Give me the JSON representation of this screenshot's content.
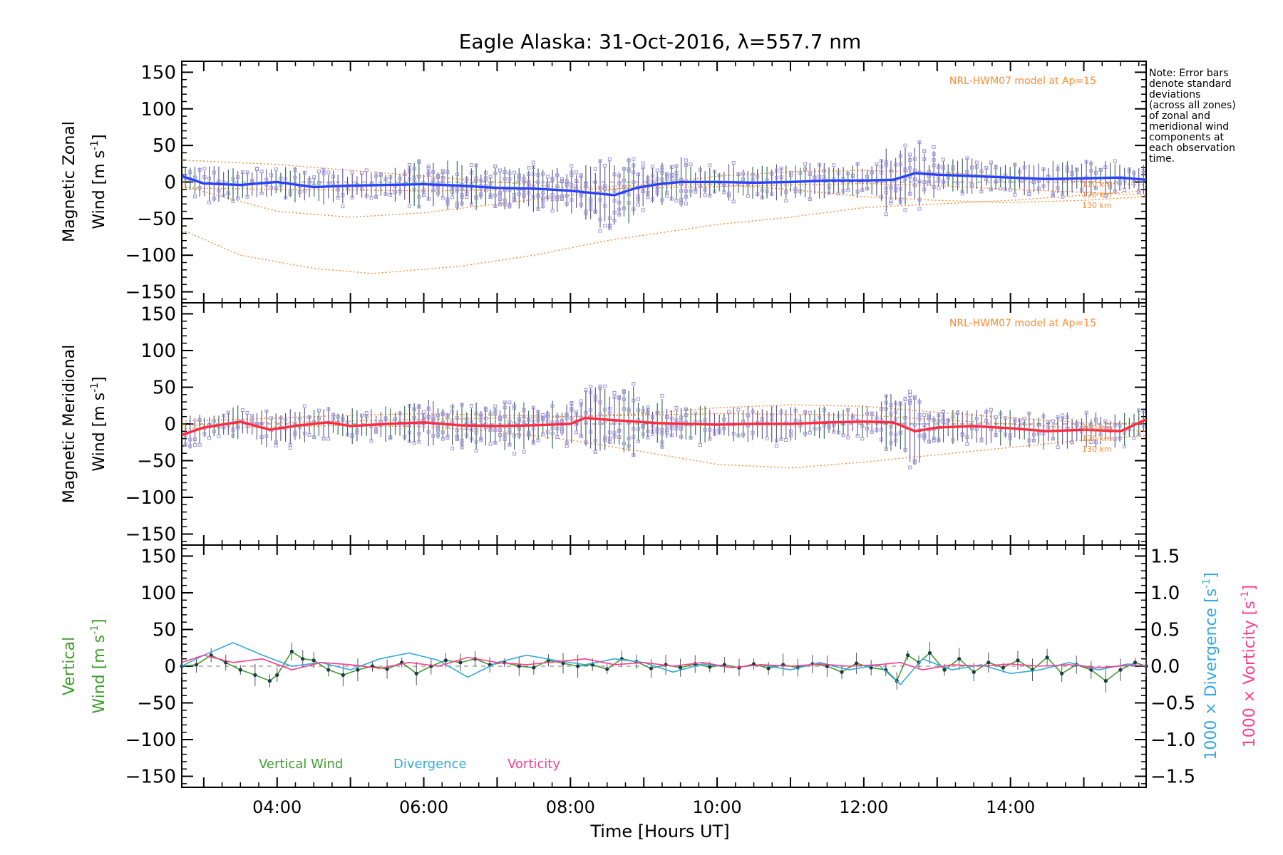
{
  "title": "Eagle Alaska: 31-Oct-2016, λ=557.7 nm",
  "note_lines": [
    "Note: Error bars",
    "denote standard",
    "deviations",
    "(across all zones)",
    "of zonal and",
    "meridional wind",
    "components at",
    "each observation",
    "time."
  ],
  "xlabel": "Time [Hours UT]",
  "x_ticks": [
    "04:00",
    "06:00",
    "08:00",
    "10:00",
    "12:00",
    "14:00"
  ],
  "colors": {
    "zonal": "#2c3fff",
    "zonal_light": "#5ab7ea",
    "meridional": "#ff2a3a",
    "meridional_light": "#ff6fa6",
    "model": "#ff8a33",
    "samples": "#9d93d9",
    "vertical": "#3f9d2f",
    "divergence": "#33a9dc",
    "vorticity": "#ff3c8c"
  },
  "chart_data": [
    {
      "type": "line",
      "panel": "zonal",
      "ylabel_line1": "Magnetic Zonal",
      "ylabel_line2": "Wind [m s",
      "ylabel_sup": "-1",
      "ylabel_end": "]",
      "xlim": [
        2.7,
        15.85
      ],
      "ylim": [
        -165,
        165
      ],
      "y_ticks": [
        "150",
        "100",
        "50",
        "0",
        "−50",
        "−100",
        "−150"
      ],
      "model_label": "NRL-HWM07 model at Ap=15",
      "altitude_labels": [
        "110 km",
        "120 km",
        "130 km"
      ],
      "series": [
        {
          "x": [
            2.7,
            3.0,
            3.5,
            4.0,
            4.5,
            5.0,
            5.5,
            6.0,
            6.5,
            7.0,
            7.5,
            8.0,
            8.3,
            8.6,
            8.9,
            9.2,
            9.5,
            10.0,
            10.5,
            11.0,
            11.5,
            12.0,
            12.4,
            12.7,
            13.0,
            13.5,
            14.0,
            14.5,
            15.0,
            15.5,
            15.85
          ],
          "y": [
            8,
            -2,
            -4,
            0,
            -7,
            -5,
            -4,
            -3,
            -5,
            -8,
            -9,
            -12,
            -15,
            -18,
            -8,
            -3,
            0,
            0,
            -1,
            0,
            2,
            2,
            3,
            12,
            10,
            8,
            6,
            4,
            5,
            6,
            3
          ]
        }
      ],
      "model_curves": [
        {
          "x": [
            2.7,
            4,
            5,
            6,
            7,
            8,
            9,
            10,
            11,
            12,
            13,
            14,
            15,
            15.85
          ],
          "y": [
            30,
            24,
            16,
            8,
            0,
            -8,
            -4,
            8,
            14,
            16,
            13,
            8,
            0,
            -4
          ]
        },
        {
          "x": [
            2.7,
            4,
            5,
            6,
            7,
            8,
            9,
            10,
            11,
            12,
            13,
            14,
            15,
            15.85
          ],
          "y": [
            -5,
            -40,
            -48,
            -42,
            -30,
            -18,
            -5,
            -3,
            -10,
            -20,
            -25,
            -28,
            -25,
            -20
          ]
        },
        {
          "x": [
            2.7,
            3.5,
            4.5,
            5.3,
            6.5,
            7.5,
            8.5,
            10,
            11,
            12,
            13,
            14,
            15,
            15.85
          ],
          "y": [
            -65,
            -100,
            -118,
            -125,
            -115,
            -100,
            -80,
            -58,
            -48,
            -35,
            -30,
            -25,
            -18,
            -12
          ]
        },
        {
          "x": [
            2.7,
            4,
            6,
            8,
            10,
            12,
            13,
            14,
            15,
            15.85
          ],
          "y": [
            -8,
            -10,
            -12,
            -10,
            -6,
            -2,
            -5,
            -10,
            -14,
            -18
          ]
        }
      ]
    },
    {
      "type": "line",
      "panel": "meridional",
      "ylabel_line1": "Magnetic Meridional",
      "ylabel_line2": "Wind [m s",
      "ylabel_sup": "-1",
      "ylabel_end": "]",
      "xlim": [
        2.7,
        15.85
      ],
      "ylim": [
        -165,
        165
      ],
      "y_ticks": [
        "150",
        "100",
        "50",
        "0",
        "−50",
        "−100",
        "−150"
      ],
      "model_label": "NRL-HWM07 model at Ap=15",
      "altitude_labels": [
        "110 km",
        "120 km",
        "130 km"
      ],
      "series": [
        {
          "x": [
            2.7,
            3.0,
            3.5,
            3.9,
            4.3,
            4.7,
            5.0,
            5.5,
            6.0,
            6.5,
            7.0,
            7.5,
            8.0,
            8.2,
            8.6,
            8.9,
            9.2,
            9.6,
            10.0,
            10.5,
            11.0,
            11.5,
            12.0,
            12.4,
            12.7,
            13.0,
            13.5,
            14.0,
            14.5,
            15.0,
            15.5,
            15.85
          ],
          "y": [
            -15,
            -5,
            3,
            -8,
            -2,
            2,
            -3,
            0,
            2,
            -2,
            -3,
            -2,
            0,
            8,
            5,
            3,
            1,
            0,
            -1,
            0,
            0,
            2,
            3,
            2,
            -10,
            -5,
            -3,
            -6,
            -10,
            -8,
            -10,
            6
          ]
        }
      ],
      "model_curves": [
        {
          "x": [
            2.7,
            4,
            5,
            6,
            7,
            8,
            9,
            10,
            11,
            12,
            13,
            14,
            15,
            15.85
          ],
          "y": [
            4,
            8,
            12,
            14,
            12,
            10,
            14,
            22,
            26,
            24,
            16,
            8,
            2,
            0
          ]
        },
        {
          "x": [
            2.7,
            4,
            5,
            6,
            7,
            8,
            9,
            10,
            11,
            12,
            13,
            14,
            15,
            15.85
          ],
          "y": [
            -6,
            -4,
            -2,
            -4,
            -10,
            -22,
            -38,
            -55,
            -60,
            -52,
            -42,
            -32,
            -22,
            -16
          ]
        },
        {
          "x": [
            2.7,
            4,
            6,
            8,
            10,
            12,
            13,
            14,
            15,
            15.85
          ],
          "y": [
            -2,
            2,
            6,
            10,
            14,
            12,
            6,
            0,
            -6,
            -10
          ]
        }
      ]
    },
    {
      "type": "line",
      "panel": "vertical",
      "ylabel_line1": "Vertical",
      "ylabel_line2": "Wind [m s",
      "ylabel_sup": "-1",
      "ylabel_end": "]",
      "right_label_1": "1000 × Divergence [s",
      "right_label_2": "1000 × Vorticity [s",
      "right_sup": "-1",
      "right_end": "]",
      "xlim": [
        2.7,
        15.85
      ],
      "ylim": [
        -165,
        165
      ],
      "y_ticks": [
        "150",
        "100",
        "50",
        "0",
        "−50",
        "−100",
        "−150"
      ],
      "ylim_right": [
        -1.65,
        1.65
      ],
      "y_ticks_right": [
        "1.5",
        "1.0",
        "0.5",
        "0.0",
        "−0.5",
        "−1.0",
        "−1.5"
      ],
      "legend": [
        "Vertical Wind",
        "Divergence",
        "Vorticity"
      ],
      "series": [
        {
          "name": "Vertical Wind",
          "axis": "left",
          "x": [
            2.7,
            2.9,
            3.1,
            3.3,
            3.5,
            3.7,
            3.9,
            4.0,
            4.2,
            4.35,
            4.5,
            4.7,
            4.9,
            5.1,
            5.3,
            5.5,
            5.7,
            5.9,
            6.1,
            6.3,
            6.5,
            6.7,
            6.9,
            7.1,
            7.3,
            7.5,
            7.7,
            7.9,
            8.1,
            8.3,
            8.5,
            8.7,
            8.9,
            9.1,
            9.3,
            9.5,
            9.7,
            9.9,
            10.1,
            10.3,
            10.5,
            10.7,
            10.9,
            11.1,
            11.3,
            11.5,
            11.7,
            11.9,
            12.1,
            12.3,
            12.45,
            12.6,
            12.75,
            12.9,
            13.1,
            13.3,
            13.5,
            13.7,
            13.9,
            14.1,
            14.3,
            14.5,
            14.7,
            14.9,
            15.1,
            15.3,
            15.5,
            15.7,
            15.85
          ],
          "y": [
            0,
            2,
            15,
            5,
            -5,
            -12,
            -20,
            -12,
            20,
            10,
            8,
            -5,
            -12,
            -5,
            0,
            -4,
            5,
            -10,
            0,
            8,
            5,
            10,
            2,
            5,
            0,
            -2,
            8,
            4,
            0,
            2,
            -4,
            10,
            6,
            -3,
            2,
            -2,
            3,
            -1,
            2,
            -2,
            3,
            -3,
            2,
            -2,
            3,
            0,
            -8,
            4,
            -2,
            -5,
            -20,
            15,
            5,
            18,
            -5,
            10,
            -8,
            5,
            -2,
            8,
            -5,
            12,
            -10,
            2,
            -5,
            -20,
            -5,
            5,
            0
          ]
        },
        {
          "name": "Divergence",
          "axis": "right",
          "x": [
            2.7,
            3.0,
            3.4,
            3.8,
            4.2,
            4.6,
            5.0,
            5.4,
            5.8,
            6.2,
            6.6,
            7.0,
            7.4,
            7.8,
            8.2,
            8.6,
            9.0,
            9.4,
            9.8,
            10.2,
            10.6,
            11.0,
            11.4,
            11.8,
            12.2,
            12.5,
            12.8,
            13.2,
            13.6,
            14.0,
            14.4,
            14.8,
            15.2,
            15.6,
            15.85
          ],
          "y": [
            0.0,
            0.15,
            0.32,
            0.15,
            0.0,
            0.05,
            -0.05,
            0.1,
            0.18,
            0.08,
            -0.15,
            0.05,
            0.15,
            0.08,
            0.02,
            0.1,
            0.05,
            -0.08,
            0.03,
            -0.02,
            0.02,
            -0.05,
            0.05,
            -0.05,
            0.02,
            -0.25,
            0.1,
            -0.05,
            0.02,
            -0.1,
            -0.05,
            0.05,
            -0.05,
            0.03,
            0.0
          ]
        },
        {
          "name": "Vorticity",
          "axis": "right",
          "x": [
            2.7,
            3.0,
            3.4,
            3.8,
            4.2,
            4.6,
            5.0,
            5.4,
            5.8,
            6.2,
            6.6,
            7.0,
            7.4,
            7.8,
            8.2,
            8.6,
            9.0,
            9.4,
            9.8,
            10.2,
            10.6,
            11.0,
            11.4,
            11.8,
            12.2,
            12.5,
            12.8,
            13.2,
            13.6,
            14.0,
            14.4,
            14.8,
            15.2,
            15.6,
            15.85
          ],
          "y": [
            0.05,
            0.15,
            0.05,
            0.1,
            -0.05,
            0.05,
            0.02,
            -0.03,
            0.05,
            0.0,
            0.12,
            0.05,
            0.02,
            0.06,
            0.1,
            0.02,
            0.05,
            0.0,
            0.05,
            -0.02,
            0.02,
            0.0,
            0.03,
            0.0,
            0.02,
            0.05,
            -0.05,
            0.02,
            0.0,
            0.03,
            0.0,
            0.02,
            -0.02,
            0.01,
            0.0
          ]
        }
      ]
    }
  ]
}
